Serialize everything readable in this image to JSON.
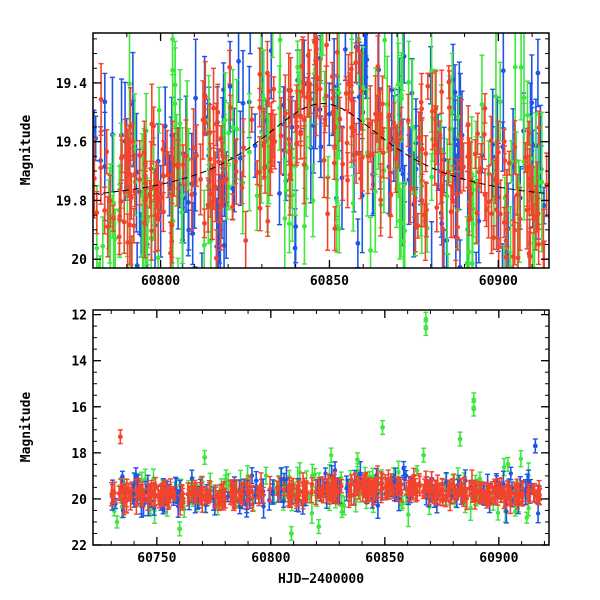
{
  "colors": {
    "blue": "#1f55e6",
    "green": "#3ee63e",
    "red": "#f2442c",
    "model": "#000000"
  },
  "chart_data": [
    {
      "type": "scatter",
      "panel": "top",
      "title": "",
      "xlabel": "",
      "ylabel": "Magnitude",
      "xlim": [
        60780,
        60915
      ],
      "ylim": [
        20.03,
        19.23
      ],
      "y_inverted": true,
      "xticks": [
        60800,
        60850,
        60900
      ],
      "yticks": [
        19.4,
        19.6,
        19.8,
        20
      ],
      "ytick_labels": [
        "19.4",
        "19.6",
        "19.8",
        "20"
      ],
      "model_curve": {
        "style": "dashed",
        "baseline_mag": 19.82,
        "peak_mag": 19.47,
        "peak_x": 60848,
        "width_days": 25
      },
      "series": [
        {
          "color": "blue",
          "scatter_mag": 0.18,
          "typical_error": 0.12
        },
        {
          "color": "green",
          "scatter_mag": 0.2,
          "typical_error": 0.14
        },
        {
          "color": "red",
          "scatter_mag": 0.15,
          "typical_error": 0.08
        }
      ]
    },
    {
      "type": "scatter",
      "panel": "bottom",
      "title": "",
      "xlabel": "HJD−2400000",
      "ylabel": "Magnitude",
      "xlim": [
        60722,
        60922
      ],
      "ylim": [
        22,
        11.8
      ],
      "y_inverted": true,
      "xticks": [
        60750,
        60800,
        60850,
        60900
      ],
      "yticks": [
        12,
        14,
        16,
        18,
        20,
        22
      ],
      "ytick_labels": [
        "12",
        "14",
        "16",
        "18",
        "20",
        "22"
      ],
      "baseline_mag": 19.85,
      "outliers": [
        {
          "color": "green",
          "x": 60868,
          "y": 12.2
        },
        {
          "color": "green",
          "x": 60868,
          "y": 12.6
        },
        {
          "color": "green",
          "x": 60889,
          "y": 15.7
        },
        {
          "color": "green",
          "x": 60889,
          "y": 16.1
        },
        {
          "color": "green",
          "x": 60883,
          "y": 17.4
        },
        {
          "color": "green",
          "x": 60849,
          "y": 16.9
        },
        {
          "color": "red",
          "x": 60734,
          "y": 17.3
        },
        {
          "color": "blue",
          "x": 60916,
          "y": 17.7
        },
        {
          "color": "green",
          "x": 60771,
          "y": 18.2
        },
        {
          "color": "green",
          "x": 60838,
          "y": 18.3
        },
        {
          "color": "green",
          "x": 60867,
          "y": 18.1
        },
        {
          "color": "green",
          "x": 60904,
          "y": 18.5
        },
        {
          "color": "green",
          "x": 60760,
          "y": 21.3
        },
        {
          "color": "green",
          "x": 60809,
          "y": 21.5
        },
        {
          "color": "green",
          "x": 60821,
          "y": 21.2
        }
      ]
    }
  ]
}
